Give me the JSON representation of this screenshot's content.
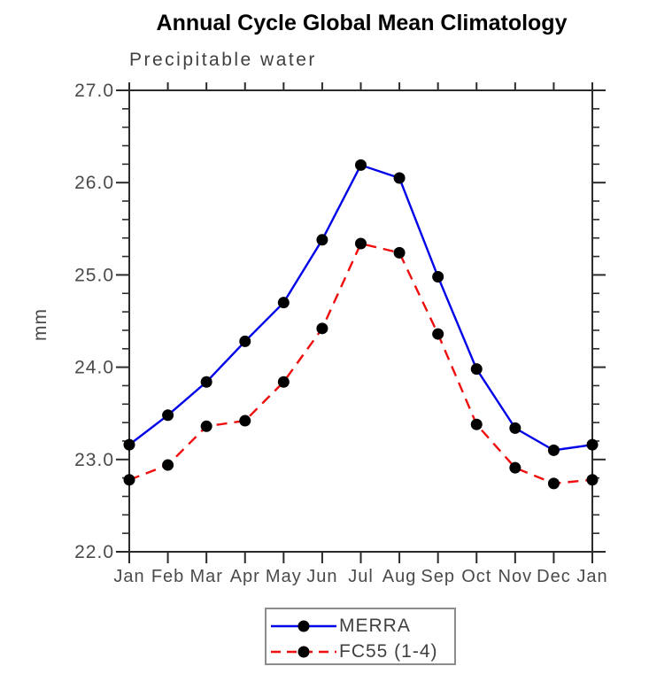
{
  "chart_data": {
    "type": "line",
    "title": "Annual Cycle Global Mean Climatology",
    "subtitle": "Precipitable water",
    "xlabel": "",
    "ylabel": "mm",
    "categories": [
      "Jan",
      "Feb",
      "Mar",
      "Apr",
      "May",
      "Jun",
      "Jul",
      "Aug",
      "Sep",
      "Oct",
      "Nov",
      "Dec",
      "Jan"
    ],
    "ylim": [
      22.0,
      27.0
    ],
    "ytick_major": [
      22.0,
      23.0,
      24.0,
      25.0,
      26.0,
      27.0
    ],
    "ytick_minor_step": 0.2,
    "ytick_label_format": "one-decimal",
    "grid": false,
    "frame": "box-with-outward-ticks",
    "legend_position": "bottom-center",
    "marker": "black-dot",
    "series": [
      {
        "name": "MERRA",
        "color": "#0202e8",
        "line_style": "solid",
        "values": [
          23.16,
          23.48,
          23.84,
          24.28,
          24.7,
          25.38,
          26.19,
          26.05,
          24.98,
          23.98,
          23.34,
          23.1,
          23.16
        ]
      },
      {
        "name": "FC55 (1-4)",
        "color": "#ef0d0d",
        "line_style": "dashed",
        "values": [
          22.78,
          22.94,
          23.36,
          23.42,
          23.84,
          24.42,
          25.34,
          25.24,
          24.36,
          23.38,
          22.91,
          22.74,
          22.78
        ]
      }
    ]
  },
  "colors": {
    "background": "#ffffff",
    "axis": "#2b2b2b",
    "tick_text": "#4a4a4a",
    "title_text": "#000000",
    "marker": "#000000",
    "legend_border": "#8c8c8c"
  }
}
